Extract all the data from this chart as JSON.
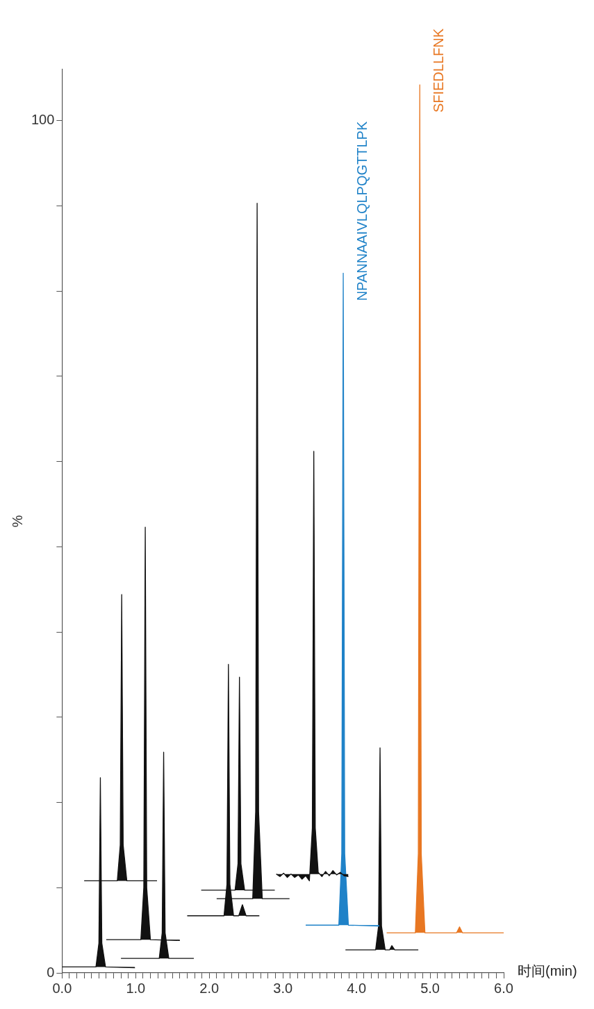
{
  "chart_data": {
    "type": "area",
    "xlabel": "时间(min)",
    "ylabel": "%",
    "xlim": [
      0,
      6
    ],
    "ylim": [
      0,
      106
    ],
    "xticks": [
      {
        "value": 0,
        "label": "0.0"
      },
      {
        "value": 0.1,
        "label": null
      },
      {
        "value": 0.2,
        "label": null
      },
      {
        "value": 0.3,
        "label": null
      },
      {
        "value": 0.4,
        "label": null
      },
      {
        "value": 0.5,
        "label": null
      },
      {
        "value": 0.6,
        "label": null
      },
      {
        "value": 0.7,
        "label": null
      },
      {
        "value": 0.8,
        "label": null
      },
      {
        "value": 0.9,
        "label": null
      },
      {
        "value": 1,
        "label": "1.0"
      },
      {
        "value": 1.1,
        "label": null
      },
      {
        "value": 1.2,
        "label": null
      },
      {
        "value": 1.3,
        "label": null
      },
      {
        "value": 1.4,
        "label": null
      },
      {
        "value": 1.5,
        "label": null
      },
      {
        "value": 1.6,
        "label": null
      },
      {
        "value": 1.7,
        "label": null
      },
      {
        "value": 1.8,
        "label": null
      },
      {
        "value": 1.9,
        "label": null
      },
      {
        "value": 2,
        "label": "2.0"
      },
      {
        "value": 2.1,
        "label": null
      },
      {
        "value": 2.2,
        "label": null
      },
      {
        "value": 2.3,
        "label": null
      },
      {
        "value": 2.4,
        "label": null
      },
      {
        "value": 2.5,
        "label": null
      },
      {
        "value": 2.6,
        "label": null
      },
      {
        "value": 2.7,
        "label": null
      },
      {
        "value": 2.8,
        "label": null
      },
      {
        "value": 2.9,
        "label": null
      },
      {
        "value": 3,
        "label": "3.0"
      },
      {
        "value": 3.1,
        "label": null
      },
      {
        "value": 3.2,
        "label": null
      },
      {
        "value": 3.3,
        "label": null
      },
      {
        "value": 3.4,
        "label": null
      },
      {
        "value": 3.5,
        "label": null
      },
      {
        "value": 3.6,
        "label": null
      },
      {
        "value": 3.7,
        "label": null
      },
      {
        "value": 3.8,
        "label": null
      },
      {
        "value": 3.9,
        "label": null
      },
      {
        "value": 4,
        "label": "4.0"
      },
      {
        "value": 4.1,
        "label": null
      },
      {
        "value": 4.2,
        "label": null
      },
      {
        "value": 4.3,
        "label": null
      },
      {
        "value": 4.4,
        "label": null
      },
      {
        "value": 4.5,
        "label": null
      },
      {
        "value": 4.6,
        "label": null
      },
      {
        "value": 4.7,
        "label": null
      },
      {
        "value": 4.8,
        "label": null
      },
      {
        "value": 4.9,
        "label": null
      },
      {
        "value": 5,
        "label": "5.0"
      },
      {
        "value": 5.1,
        "label": null
      },
      {
        "value": 5.2,
        "label": null
      },
      {
        "value": 5.3,
        "label": null
      },
      {
        "value": 5.4,
        "label": null
      },
      {
        "value": 5.5,
        "label": null
      },
      {
        "value": 5.6,
        "label": null
      },
      {
        "value": 5.7,
        "label": null
      },
      {
        "value": 5.8,
        "label": null
      },
      {
        "value": 5.9,
        "label": null
      },
      {
        "value": 6,
        "label": "6.0"
      }
    ],
    "yticks": [
      0,
      {
        "value": 10,
        "label": null
      },
      {
        "value": 20,
        "label": null
      },
      {
        "value": 30,
        "label": null
      },
      {
        "value": 40,
        "label": null
      },
      {
        "value": 50,
        "label": null
      },
      {
        "value": 60,
        "label": null
      },
      {
        "value": 70,
        "label": null
      },
      {
        "value": 80,
        "label": null
      },
      {
        "value": 90,
        "label": null
      },
      100
    ],
    "grid": false,
    "legend": false,
    "marker": "none",
    "line_style": "solid",
    "series": [
      {
        "color": "#111111",
        "x": [
          0,
          0.46,
          0.5,
          0.52,
          0.54,
          0.59,
          0.99
        ],
        "values": [
          0.7,
          0.7,
          3.5,
          22.9,
          3.5,
          0.7,
          0.6
        ]
      },
      {
        "color": "#111111",
        "x": [
          0.3,
          0.75,
          0.79,
          0.81,
          0.83,
          0.88,
          1.29
        ],
        "values": [
          10.8,
          10.8,
          15.0,
          44.4,
          15.0,
          10.8,
          10.8
        ]
      },
      {
        "color": "#111111",
        "x": [
          0.6,
          1.07,
          1.11,
          1.13,
          1.15,
          1.2,
          1.6
        ],
        "values": [
          3.9,
          3.9,
          10.0,
          52.3,
          10.0,
          3.9,
          3.8
        ]
      },
      {
        "color": "#111111",
        "x": [
          0.8,
          1.32,
          1.36,
          1.38,
          1.4,
          1.45,
          1.79
        ],
        "values": [
          1.7,
          1.7,
          4.7,
          25.9,
          4.7,
          1.7,
          1.7
        ]
      },
      {
        "color": "#111111",
        "x": [
          1.7,
          2.2,
          2.24,
          2.26,
          2.28,
          2.33,
          2.4,
          2.45,
          2.5,
          2.68
        ],
        "values": [
          6.7,
          6.7,
          10.4,
          36.2,
          10.4,
          6.7,
          6.7,
          8.0,
          6.7,
          6.7
        ]
      },
      {
        "color": "#111111",
        "x": [
          1.89,
          2.35,
          2.39,
          2.41,
          2.43,
          2.48,
          2.89
        ],
        "values": [
          9.7,
          9.7,
          12.8,
          34.7,
          12.8,
          9.7,
          9.7
        ]
      },
      {
        "color": "#111111",
        "x": [
          2.1,
          2.59,
          2.63,
          2.65,
          2.67,
          2.72,
          3.09
        ],
        "values": [
          8.7,
          8.7,
          18.9,
          90.3,
          18.9,
          8.7,
          8.7
        ]
      },
      {
        "color": "#111111",
        "x": [
          2.91,
          2.96,
          3.01,
          3.06,
          3.11,
          3.16,
          3.21,
          3.26,
          3.31,
          3.36,
          3.4,
          3.42,
          3.44,
          3.48,
          3.53,
          3.58,
          3.63,
          3.68,
          3.73,
          3.78,
          3.83,
          3.89
        ],
        "values": [
          11.6,
          11.3,
          11.7,
          11.2,
          11.6,
          11.2,
          11.5,
          11.0,
          11.4,
          10.8,
          17.0,
          61.2,
          17.0,
          11.8,
          11.3,
          11.9,
          11.4,
          12.0,
          11.5,
          11.8,
          11.4,
          11.3
        ]
      },
      {
        "name": "NPANNAAIVLQLPQGTTLPK",
        "color": "#1f82c8",
        "x": [
          3.31,
          3.76,
          3.8,
          3.82,
          3.84,
          3.89,
          4.31
        ],
        "values": [
          5.6,
          5.6,
          14.0,
          82.1,
          14.0,
          5.6,
          5.5
        ]
      },
      {
        "color": "#111111",
        "x": [
          3.85,
          4.26,
          4.3,
          4.32,
          4.34,
          4.39,
          4.45,
          4.48,
          4.52,
          4.84
        ],
        "values": [
          2.7,
          2.7,
          5.5,
          26.4,
          5.5,
          2.7,
          2.7,
          3.2,
          2.7,
          2.7
        ]
      },
      {
        "name": "SFIEDLLFNK",
        "color": "#e87722",
        "x": [
          4.41,
          4.8,
          4.84,
          4.86,
          4.88,
          4.93,
          5.36,
          5.4,
          5.44,
          6.0
        ],
        "values": [
          4.7,
          4.7,
          14.0,
          104.2,
          14.0,
          4.7,
          4.7,
          5.4,
          4.7,
          4.7
        ]
      }
    ]
  }
}
